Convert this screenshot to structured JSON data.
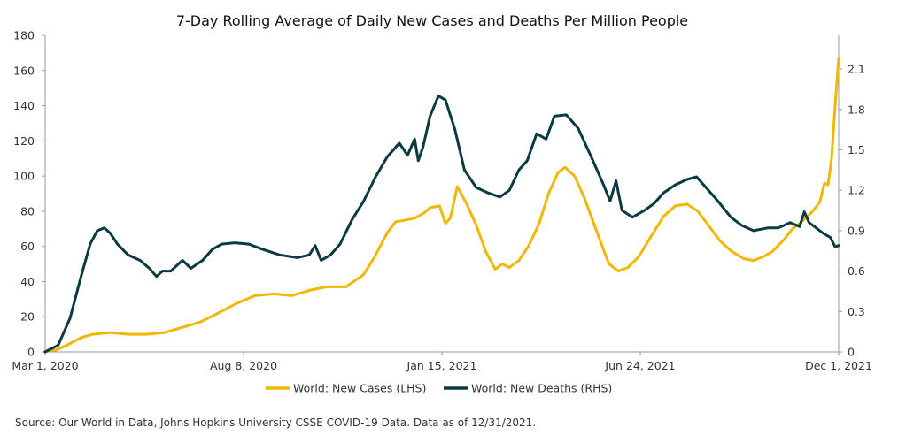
{
  "chart_data": {
    "type": "line",
    "title": "7-Day Rolling Average of Daily New Cases and Deaths Per Million People",
    "x_ticks": [
      "Mar 1, 2020",
      "Aug 8, 2020",
      "Jan 15, 2021",
      "Jun 24, 2021",
      "Dec 1, 2021"
    ],
    "x_range": [
      "2020-03-01",
      "2021-12-31"
    ],
    "y_left": {
      "ylim": [
        0,
        180
      ],
      "ticks": [
        "0",
        "20",
        "40",
        "60",
        "80",
        "100",
        "120",
        "140",
        "160",
        "180"
      ]
    },
    "y_right": {
      "ylim": [
        0,
        2.35
      ],
      "ticks": [
        "0",
        "0.3",
        "0.6",
        "0.9",
        "1.2",
        "1.5",
        "1.8",
        "2.1"
      ]
    },
    "legend_position": "bottom-center",
    "grid": false,
    "series": [
      {
        "name": "World: New Cases (LHS)",
        "axis": "left",
        "color": "#F2B705",
        "points": [
          [
            "2020-03-01",
            0.5
          ],
          [
            "2020-03-10",
            1
          ],
          [
            "2020-03-20",
            4
          ],
          [
            "2020-03-31",
            8
          ],
          [
            "2020-04-10",
            10
          ],
          [
            "2020-04-25",
            11
          ],
          [
            "2020-05-10",
            10
          ],
          [
            "2020-05-25",
            10
          ],
          [
            "2020-06-10",
            11
          ],
          [
            "2020-06-25",
            14
          ],
          [
            "2020-07-10",
            17
          ],
          [
            "2020-07-25",
            22
          ],
          [
            "2020-08-08",
            27
          ],
          [
            "2020-08-25",
            32
          ],
          [
            "2020-09-10",
            33
          ],
          [
            "2020-09-25",
            32
          ],
          [
            "2020-10-10",
            35
          ],
          [
            "2020-10-25",
            37
          ],
          [
            "2020-11-10",
            37
          ],
          [
            "2020-11-25",
            44
          ],
          [
            "2020-12-05",
            55
          ],
          [
            "2020-12-15",
            68
          ],
          [
            "2020-12-22",
            74
          ],
          [
            "2020-12-31",
            75
          ],
          [
            "2021-01-07",
            76
          ],
          [
            "2021-01-15",
            79
          ],
          [
            "2021-01-20",
            82
          ],
          [
            "2021-01-28",
            83
          ],
          [
            "2021-02-02",
            73
          ],
          [
            "2021-02-06",
            76
          ],
          [
            "2021-02-12",
            94
          ],
          [
            "2021-02-20",
            84
          ],
          [
            "2021-02-28",
            72
          ],
          [
            "2021-03-08",
            57
          ],
          [
            "2021-03-16",
            47
          ],
          [
            "2021-03-22",
            50
          ],
          [
            "2021-03-28",
            48
          ],
          [
            "2021-04-05",
            52
          ],
          [
            "2021-04-13",
            60
          ],
          [
            "2021-04-22",
            73
          ],
          [
            "2021-04-30",
            90
          ],
          [
            "2021-05-08",
            102
          ],
          [
            "2021-05-14",
            105
          ],
          [
            "2021-05-22",
            100
          ],
          [
            "2021-05-30",
            88
          ],
          [
            "2021-06-10",
            68
          ],
          [
            "2021-06-20",
            50
          ],
          [
            "2021-06-28",
            46
          ],
          [
            "2021-07-06",
            48
          ],
          [
            "2021-07-15",
            54
          ],
          [
            "2021-07-25",
            65
          ],
          [
            "2021-08-05",
            77
          ],
          [
            "2021-08-15",
            83
          ],
          [
            "2021-08-25",
            84
          ],
          [
            "2021-09-03",
            80
          ],
          [
            "2021-09-12",
            72
          ],
          [
            "2021-09-22",
            63
          ],
          [
            "2021-10-02",
            57
          ],
          [
            "2021-10-12",
            53
          ],
          [
            "2021-10-20",
            52
          ],
          [
            "2021-10-28",
            54
          ],
          [
            "2021-11-05",
            57
          ],
          [
            "2021-11-15",
            64
          ],
          [
            "2021-11-22",
            70
          ],
          [
            "2021-11-28",
            73
          ],
          [
            "2021-12-03",
            76
          ],
          [
            "2021-12-09",
            80
          ],
          [
            "2021-12-15",
            85
          ],
          [
            "2021-12-19",
            96
          ],
          [
            "2021-12-22",
            95
          ],
          [
            "2021-12-25",
            110
          ],
          [
            "2021-12-28",
            140
          ],
          [
            "2021-12-31",
            167
          ]
        ]
      },
      {
        "name": "World: New Deaths (RHS)",
        "axis": "right",
        "color": "#0B3B40",
        "points": [
          [
            "2020-03-01",
            0
          ],
          [
            "2020-03-12",
            0.05
          ],
          [
            "2020-03-22",
            0.25
          ],
          [
            "2020-03-31",
            0.55
          ],
          [
            "2020-04-08",
            0.8
          ],
          [
            "2020-04-14",
            0.9
          ],
          [
            "2020-04-20",
            0.92
          ],
          [
            "2020-04-25",
            0.88
          ],
          [
            "2020-05-01",
            0.8
          ],
          [
            "2020-05-10",
            0.72
          ],
          [
            "2020-05-20",
            0.68
          ],
          [
            "2020-05-28",
            0.62
          ],
          [
            "2020-06-03",
            0.56
          ],
          [
            "2020-06-08",
            0.6
          ],
          [
            "2020-06-15",
            0.6
          ],
          [
            "2020-06-25",
            0.68
          ],
          [
            "2020-07-02",
            0.62
          ],
          [
            "2020-07-12",
            0.68
          ],
          [
            "2020-07-20",
            0.76
          ],
          [
            "2020-07-28",
            0.8
          ],
          [
            "2020-08-08",
            0.81
          ],
          [
            "2020-08-20",
            0.8
          ],
          [
            "2020-09-01",
            0.76
          ],
          [
            "2020-09-15",
            0.72
          ],
          [
            "2020-09-30",
            0.7
          ],
          [
            "2020-10-10",
            0.72
          ],
          [
            "2020-10-15",
            0.79
          ],
          [
            "2020-10-20",
            0.68
          ],
          [
            "2020-10-28",
            0.72
          ],
          [
            "2020-11-05",
            0.8
          ],
          [
            "2020-11-15",
            0.98
          ],
          [
            "2020-11-25",
            1.12
          ],
          [
            "2020-12-05",
            1.3
          ],
          [
            "2020-12-15",
            1.45
          ],
          [
            "2020-12-25",
            1.55
          ],
          [
            "2021-01-01",
            1.46
          ],
          [
            "2021-01-07",
            1.58
          ],
          [
            "2021-01-10",
            1.42
          ],
          [
            "2021-01-14",
            1.52
          ],
          [
            "2021-01-20",
            1.75
          ],
          [
            "2021-01-27",
            1.9
          ],
          [
            "2021-02-02",
            1.87
          ],
          [
            "2021-02-10",
            1.65
          ],
          [
            "2021-02-18",
            1.35
          ],
          [
            "2021-02-28",
            1.22
          ],
          [
            "2021-03-10",
            1.18
          ],
          [
            "2021-03-20",
            1.15
          ],
          [
            "2021-03-28",
            1.2
          ],
          [
            "2021-04-05",
            1.35
          ],
          [
            "2021-04-12",
            1.42
          ],
          [
            "2021-04-20",
            1.62
          ],
          [
            "2021-04-28",
            1.58
          ],
          [
            "2021-05-05",
            1.75
          ],
          [
            "2021-05-15",
            1.76
          ],
          [
            "2021-05-25",
            1.66
          ],
          [
            "2021-06-05",
            1.45
          ],
          [
            "2021-06-15",
            1.25
          ],
          [
            "2021-06-21",
            1.12
          ],
          [
            "2021-06-26",
            1.27
          ],
          [
            "2021-07-01",
            1.05
          ],
          [
            "2021-07-10",
            1.0
          ],
          [
            "2021-07-20",
            1.05
          ],
          [
            "2021-07-28",
            1.1
          ],
          [
            "2021-08-05",
            1.18
          ],
          [
            "2021-08-15",
            1.24
          ],
          [
            "2021-08-25",
            1.28
          ],
          [
            "2021-09-02",
            1.3
          ],
          [
            "2021-09-10",
            1.22
          ],
          [
            "2021-09-20",
            1.12
          ],
          [
            "2021-10-01",
            1.0
          ],
          [
            "2021-10-10",
            0.94
          ],
          [
            "2021-10-20",
            0.9
          ],
          [
            "2021-11-01",
            0.92
          ],
          [
            "2021-11-10",
            0.92
          ],
          [
            "2021-11-20",
            0.96
          ],
          [
            "2021-11-28",
            0.93
          ],
          [
            "2021-12-02",
            1.04
          ],
          [
            "2021-12-06",
            0.96
          ],
          [
            "2021-12-12",
            0.92
          ],
          [
            "2021-12-18",
            0.88
          ],
          [
            "2021-12-24",
            0.85
          ],
          [
            "2021-12-28",
            0.78
          ],
          [
            "2021-12-31",
            0.79
          ]
        ]
      }
    ]
  },
  "footer": {
    "source": "Source: Our World in Data, Johns Hopkins University CSSE COVID-19 Data. Data as of 12/31/2021."
  }
}
